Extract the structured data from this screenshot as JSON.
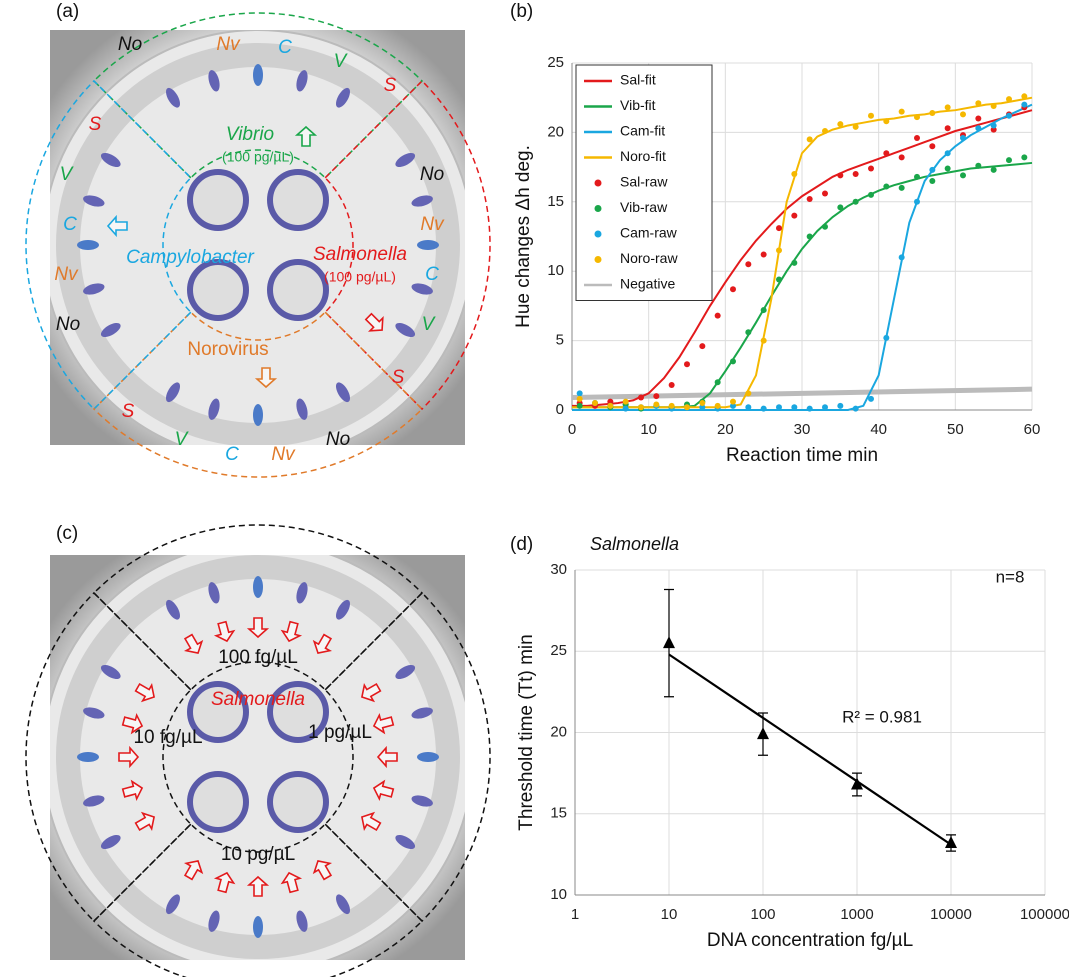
{
  "photo_a": {
    "label": "(a)",
    "labels": [
      {
        "text": "No",
        "color": "#111111"
      },
      {
        "text": "Nv",
        "color": "#e07a2a"
      },
      {
        "text": "C",
        "color": "#1aa7e0"
      },
      {
        "text": "V",
        "color": "#1aa64a"
      },
      {
        "text": "S",
        "color": "#e31a1c"
      },
      {
        "text": "No",
        "color": "#111111"
      },
      {
        "text": "Nv",
        "color": "#e07a2a"
      },
      {
        "text": "C",
        "color": "#1aa7e0"
      },
      {
        "text": "V",
        "color": "#1aa64a"
      },
      {
        "text": "S",
        "color": "#e31a1c"
      },
      {
        "text": "S",
        "color": "#e31a1c"
      },
      {
        "text": "V",
        "color": "#1aa64a"
      },
      {
        "text": "C",
        "color": "#1aa7e0"
      },
      {
        "text": "Nv",
        "color": "#e07a2a"
      },
      {
        "text": "No",
        "color": "#111111"
      },
      {
        "text": "S",
        "color": "#e31a1c"
      },
      {
        "text": "V",
        "color": "#1aa64a"
      },
      {
        "text": "C",
        "color": "#1aa7e0"
      },
      {
        "text": "Nv",
        "color": "#e07a2a"
      },
      {
        "text": "No",
        "color": "#111111"
      },
      {
        "text": "Vibrio",
        "color": "#1aa64a"
      },
      {
        "text": "(100 pg/µL)",
        "color": "#1aa64a"
      },
      {
        "text": "Campylobacter",
        "color": "#1aa7e0"
      },
      {
        "text": "Salmonella",
        "color": "#e31a1c"
      },
      {
        "text": "(100 pg/µL)",
        "color": "#e31a1c"
      },
      {
        "text": "Norovirus",
        "color": "#e07a2a"
      }
    ]
  },
  "photo_c": {
    "label": "(c)",
    "labels": [
      {
        "text": "100 fg/µL",
        "color": "#111111"
      },
      {
        "text": "Salmonella",
        "color": "#e31a1c"
      },
      {
        "text": "10 fg/µL",
        "color": "#111111"
      },
      {
        "text": "1 pg/µL",
        "color": "#111111"
      },
      {
        "text": "10 pg/µL",
        "color": "#111111"
      }
    ]
  },
  "chart_data": [
    {
      "type": "line",
      "panel": "(b)",
      "xlabel": "Reaction time  min",
      "ylabel": "Hue changes Δh deg.",
      "xlim": [
        0,
        60
      ],
      "xticks": [
        0,
        10,
        20,
        30,
        40,
        50,
        60
      ],
      "ylim": [
        0,
        25
      ],
      "yticks": [
        0,
        5,
        10,
        15,
        20,
        25
      ],
      "grid": true,
      "legend": "upper-left",
      "series": [
        {
          "name": "Sal-fit",
          "color": "#e31a1c",
          "style": "line",
          "x": [
            0,
            2,
            4,
            6,
            8,
            10,
            12,
            14,
            16,
            18,
            20,
            22,
            24,
            26,
            28,
            30,
            32,
            34,
            36,
            38,
            40,
            42,
            44,
            46,
            48,
            50,
            52,
            54,
            56,
            58,
            60
          ],
          "values": [
            0.3,
            0.3,
            0.4,
            0.5,
            0.7,
            1.2,
            2.3,
            3.8,
            5.6,
            7.5,
            9.2,
            10.8,
            12.2,
            13.4,
            14.5,
            15.4,
            16.1,
            16.8,
            17.3,
            17.7,
            18.1,
            18.5,
            18.9,
            19.3,
            19.7,
            20.1,
            20.4,
            20.7,
            21.0,
            21.3,
            21.6
          ]
        },
        {
          "name": "Vib-fit",
          "color": "#1aa64a",
          "style": "line",
          "x": [
            0,
            2,
            4,
            6,
            8,
            10,
            12,
            14,
            16,
            18,
            20,
            22,
            24,
            26,
            28,
            30,
            32,
            34,
            36,
            38,
            40,
            42,
            44,
            46,
            48,
            50,
            52,
            54,
            56,
            58,
            60
          ],
          "values": [
            0.2,
            0.2,
            0.2,
            0.2,
            0.2,
            0.2,
            0.2,
            0.2,
            0.3,
            1.2,
            2.8,
            4.5,
            6.3,
            8.2,
            10.0,
            11.6,
            12.9,
            13.9,
            14.7,
            15.3,
            15.8,
            16.2,
            16.5,
            16.8,
            17.0,
            17.2,
            17.4,
            17.5,
            17.6,
            17.7,
            17.8
          ]
        },
        {
          "name": "Cam-fit",
          "color": "#1aa7e0",
          "style": "line",
          "x": [
            0,
            2,
            4,
            6,
            8,
            10,
            12,
            14,
            16,
            18,
            20,
            22,
            24,
            26,
            28,
            30,
            32,
            34,
            36,
            38,
            40,
            42,
            44,
            46,
            48,
            50,
            52,
            54,
            56,
            58,
            60
          ],
          "values": [
            0,
            0,
            0,
            0,
            0,
            0,
            0,
            0,
            0,
            0,
            0,
            0,
            0,
            0,
            0,
            0,
            0,
            0,
            0,
            0.3,
            2.5,
            8,
            13.5,
            16.5,
            18,
            19,
            19.8,
            20.4,
            21,
            21.5,
            22
          ]
        },
        {
          "name": "Noro-fit",
          "color": "#f5b800",
          "style": "line",
          "x": [
            0,
            2,
            4,
            6,
            8,
            10,
            12,
            14,
            16,
            18,
            20,
            22,
            24,
            26,
            28,
            30,
            32,
            34,
            36,
            38,
            40,
            42,
            44,
            46,
            48,
            50,
            52,
            54,
            56,
            58,
            60
          ],
          "values": [
            0.2,
            0.2,
            0.2,
            0.2,
            0.2,
            0.2,
            0.2,
            0.2,
            0.2,
            0.2,
            0.2,
            0.4,
            2.5,
            8,
            15,
            18.5,
            19.7,
            20.2,
            20.5,
            20.7,
            20.9,
            21.0,
            21.2,
            21.3,
            21.5,
            21.6,
            21.8,
            22.0,
            22.1,
            22.3,
            22.5
          ]
        },
        {
          "name": "Sal-raw",
          "color": "#e31a1c",
          "style": "points",
          "x": [
            1,
            3,
            5,
            7,
            9,
            11,
            13,
            15,
            17,
            19,
            21,
            23,
            25,
            27,
            29,
            31,
            33,
            35,
            37,
            39,
            41,
            43,
            45,
            47,
            49,
            51,
            53,
            55,
            57,
            59
          ],
          "values": [
            0.5,
            0.3,
            0.6,
            0.4,
            0.9,
            1.0,
            1.8,
            3.3,
            4.6,
            6.8,
            8.7,
            10.5,
            11.2,
            13.1,
            14.0,
            15.2,
            15.6,
            16.9,
            17.0,
            17.4,
            18.5,
            18.2,
            19.6,
            19.0,
            20.3,
            19.8,
            21.0,
            20.2,
            21.3,
            21.8
          ]
        },
        {
          "name": "Vib-raw",
          "color": "#1aa64a",
          "style": "points",
          "x": [
            1,
            3,
            5,
            7,
            9,
            11,
            13,
            15,
            17,
            19,
            21,
            23,
            25,
            27,
            29,
            31,
            33,
            35,
            37,
            39,
            41,
            43,
            45,
            47,
            49,
            51,
            53,
            55,
            57,
            59
          ],
          "values": [
            0.3,
            0.5,
            0.2,
            0.4,
            0.1,
            0.3,
            0.2,
            0.4,
            0.6,
            2.0,
            3.5,
            5.6,
            7.2,
            9.4,
            10.6,
            12.5,
            13.2,
            14.6,
            15.0,
            15.5,
            16.1,
            16.0,
            16.8,
            16.5,
            17.4,
            16.9,
            17.6,
            17.3,
            18.0,
            18.2
          ]
        },
        {
          "name": "Cam-raw",
          "color": "#1aa7e0",
          "style": "points",
          "x": [
            1,
            3,
            5,
            7,
            9,
            11,
            13,
            15,
            17,
            19,
            21,
            23,
            25,
            27,
            29,
            31,
            33,
            35,
            37,
            39,
            41,
            43,
            45,
            47,
            49,
            51,
            53,
            55,
            57,
            59
          ],
          "values": [
            1.2,
            0.5,
            0.3,
            0.1,
            0.2,
            0.3,
            0.1,
            0.2,
            0.2,
            0.1,
            0.3,
            0.2,
            0.1,
            0.2,
            0.2,
            0.1,
            0.2,
            0.3,
            0.1,
            0.8,
            5.2,
            11.0,
            15.0,
            17.3,
            18.5,
            19.6,
            20.3,
            20.5,
            21.2,
            22.0
          ]
        },
        {
          "name": "Noro-raw",
          "color": "#f5b800",
          "style": "points",
          "x": [
            1,
            3,
            5,
            7,
            9,
            11,
            13,
            15,
            17,
            19,
            21,
            23,
            25,
            27,
            29,
            31,
            33,
            35,
            37,
            39,
            41,
            43,
            45,
            47,
            49,
            51,
            53,
            55,
            57,
            59
          ],
          "values": [
            0.8,
            0.5,
            0.3,
            0.6,
            0.2,
            0.4,
            0.3,
            0.2,
            0.5,
            0.3,
            0.6,
            1.2,
            5.0,
            11.5,
            17.0,
            19.5,
            20.1,
            20.6,
            20.4,
            21.2,
            20.8,
            21.5,
            21.1,
            21.4,
            21.8,
            21.3,
            22.1,
            21.9,
            22.4,
            22.6
          ]
        },
        {
          "name": "Negative",
          "color": "#bbbbbb",
          "style": "line",
          "x": [
            0,
            60
          ],
          "values": [
            0.9,
            1.5
          ]
        }
      ]
    },
    {
      "type": "errorbar",
      "panel": "(d)",
      "title": "Salmonella",
      "annotations": [
        "n=8",
        "R² = 0.981"
      ],
      "xlabel": "DNA concentration  fg/µL",
      "ylabel": "Threshold time (Tt)  min",
      "xscale": "log",
      "xlim": [
        1,
        100000
      ],
      "xticks": [
        1,
        10,
        100,
        1000,
        10000,
        100000
      ],
      "ylim": [
        10,
        30
      ],
      "yticks": [
        10,
        15,
        20,
        25,
        30
      ],
      "grid": true,
      "color": "#000000",
      "x": [
        10,
        100,
        1000,
        10000
      ],
      "values": [
        25.5,
        19.9,
        16.8,
        13.2
      ],
      "errors": [
        3.3,
        1.3,
        0.7,
        0.5
      ],
      "trendline": {
        "x": [
          10,
          10000
        ],
        "values": [
          24.8,
          13.1
        ]
      }
    }
  ]
}
